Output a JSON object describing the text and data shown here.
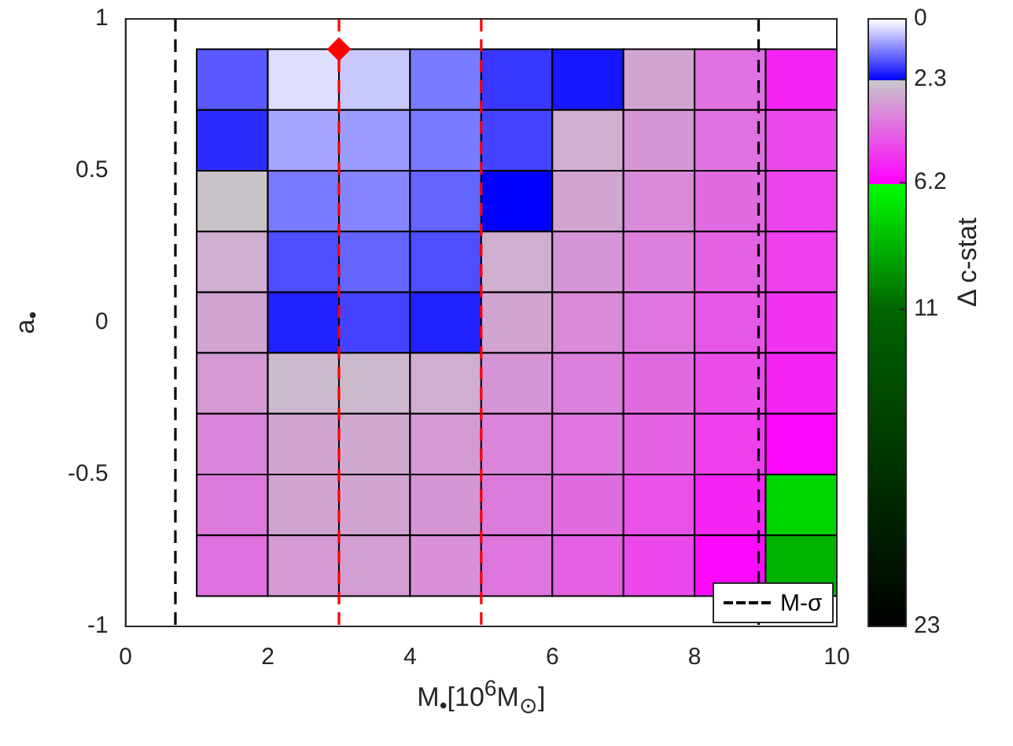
{
  "chart_data": {
    "type": "heatmap",
    "xlabel": "M$_{•}$[10$^{6}$M$_{⊙}$]",
    "ylabel": "a$_{•}$",
    "clabel": "Δ c-stat",
    "x": [
      1.5,
      2.5,
      3.5,
      4.5,
      5.5,
      6.5,
      7.5,
      8.5,
      9.5
    ],
    "y": [
      0.8,
      0.6,
      0.4,
      0.2,
      0,
      -0.2,
      -0.4,
      -0.6,
      -0.8
    ],
    "cells": [
      [
        1.5,
        0.3,
        0.5,
        1.2,
        1.8,
        2.1,
        3.0,
        4.0,
        5.5
      ],
      [
        1.9,
        0.8,
        0.9,
        1.2,
        1.7,
        2.8,
        3.3,
        4.0,
        4.8
      ],
      [
        2.4,
        1.2,
        1.1,
        1.4,
        2.3,
        3.0,
        3.5,
        4.1,
        4.9
      ],
      [
        2.8,
        1.6,
        1.4,
        1.6,
        2.8,
        3.3,
        3.7,
        4.3,
        5.0
      ],
      [
        3.0,
        2.0,
        1.7,
        2.0,
        3.0,
        3.5,
        3.9,
        4.5,
        5.2
      ],
      [
        3.2,
        2.6,
        2.6,
        2.8,
        3.3,
        3.7,
        4.1,
        4.7,
        5.5
      ],
      [
        3.6,
        3.0,
        2.9,
        3.2,
        3.6,
        3.9,
        4.3,
        5.0,
        6.0
      ],
      [
        3.8,
        3.0,
        3.0,
        3.3,
        3.8,
        4.1,
        4.6,
        5.5,
        7.5
      ],
      [
        4.0,
        3.2,
        3.1,
        3.4,
        3.9,
        4.3,
        4.8,
        6.0,
        8.5
      ]
    ],
    "clim": [
      0,
      23
    ],
    "cticks": [
      0,
      2.3,
      6.2,
      11,
      23
    ],
    "xlim": [
      0,
      10
    ],
    "xticks": [
      0,
      2,
      4,
      6,
      8,
      10
    ],
    "ylim": [
      -1,
      1
    ],
    "yticks": [
      -1,
      -0.5,
      0,
      0.5,
      1
    ],
    "series": [
      {
        "type": "scatter",
        "color": "#ff0000",
        "marker": "diamond",
        "x": [
          3
        ],
        "values": [
          0.9
        ]
      }
    ],
    "ref_lines": [
      {
        "axis": "x",
        "value": 0.7,
        "label": "M-σ",
        "color": "#000000",
        "line_style": "dashed"
      },
      {
        "axis": "x",
        "value": 8.9,
        "label": null,
        "color": "#000000",
        "line_style": "dashed"
      },
      {
        "axis": "x",
        "value": 3,
        "label": null,
        "color": "#ff0000",
        "line_style": "dashed"
      },
      {
        "axis": "x",
        "value": 5,
        "label": null,
        "color": "#ff0000",
        "line_style": "dashed"
      }
    ],
    "legend": "bottom right"
  }
}
